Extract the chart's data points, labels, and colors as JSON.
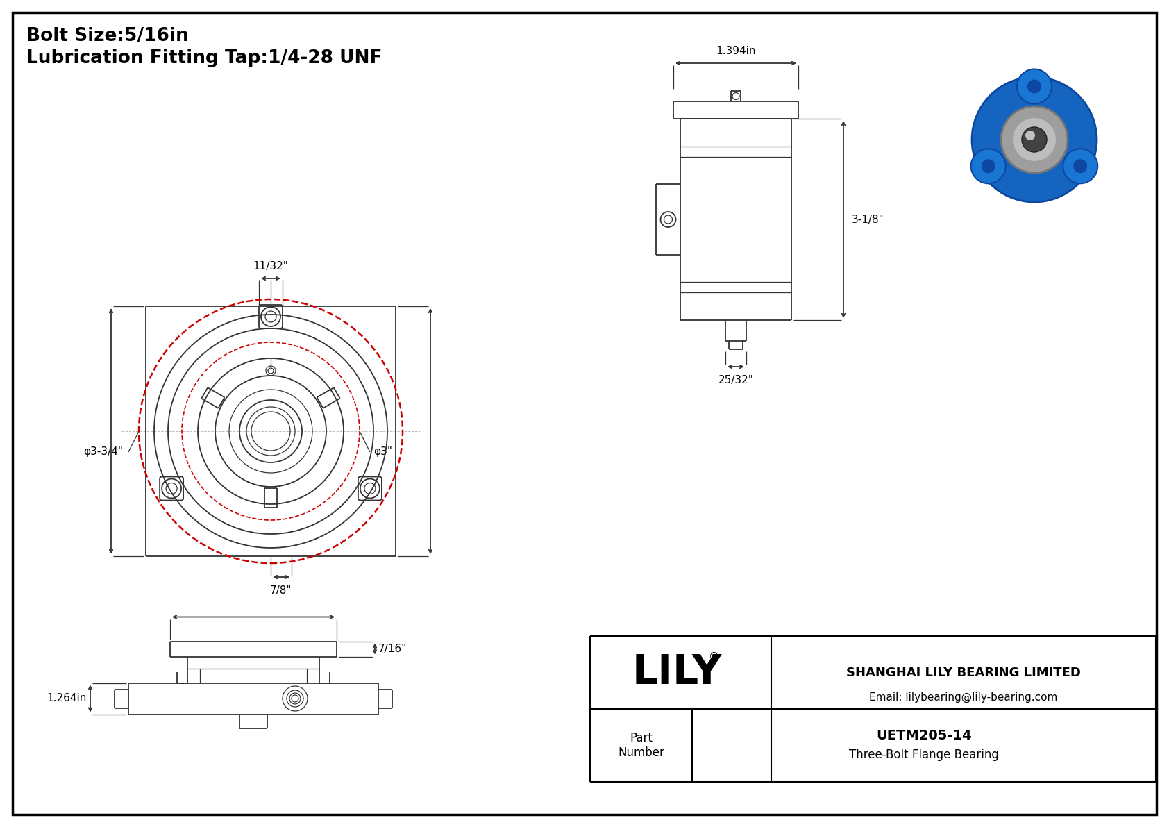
{
  "bg_color": "#ffffff",
  "border_color": "#000000",
  "line_color": "#333333",
  "red_circle_color": "#cc0000",
  "title_line1": "Bolt Size:5/16in",
  "title_line2": "Lubrication Fitting Tap:1/4-28 UNF",
  "dim_11_32": "11/32\"",
  "dim_7_8": "7/8\"",
  "dim_3_3_4": "φ3-3/4\"",
  "dim_3": "φ3\"",
  "dim_1_394": "1.394in",
  "dim_3_1_8": "3-1/8\"",
  "dim_25_32": "25/32\"",
  "dim_1_264": "1.264in",
  "dim_7_16": "7/16\"",
  "part_number": "UETM205-14",
  "part_desc": "Three-Bolt Flange Bearing",
  "company": "SHANGHAI LILY BEARING LIMITED",
  "email": "Email: lilybearing@lily-bearing.com",
  "logo": "LILY",
  "part_label": "Part\nNumber",
  "logo_reg": "®"
}
